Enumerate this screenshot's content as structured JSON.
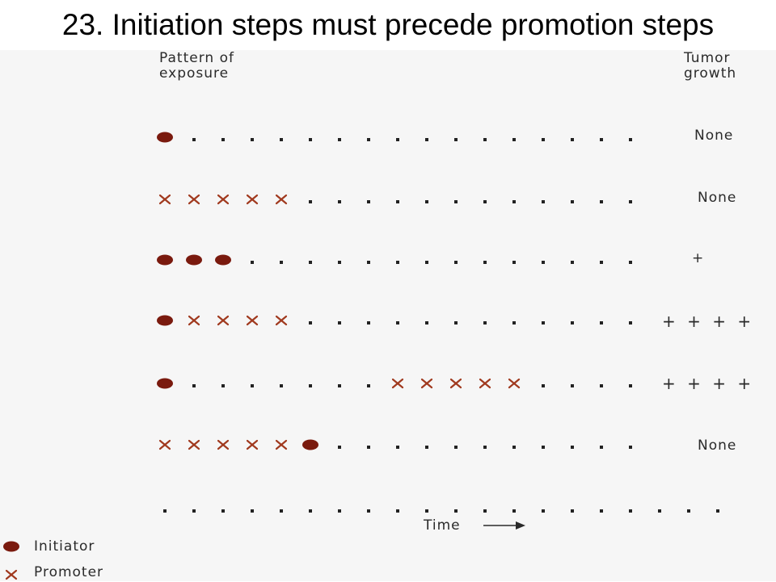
{
  "title": "23. Initiation steps must precede promotion steps",
  "header": {
    "left": [
      "Pattern of",
      "exposure"
    ],
    "right": [
      "Tumor",
      "growth"
    ]
  },
  "colors": {
    "initiator": "#7a1a0e",
    "promoter": "#a0391e",
    "dot": "#222222"
  },
  "rows": [
    {
      "sequence": [
        "I",
        "d",
        "d",
        "d",
        "d",
        "d",
        "d",
        "d",
        "d",
        "d",
        "d",
        "d",
        "d",
        "d",
        "d",
        "d",
        "d"
      ],
      "result": "None"
    },
    {
      "sequence": [
        "P",
        "P",
        "P",
        "P",
        "P",
        "d",
        "d",
        "d",
        "d",
        "d",
        "d",
        "d",
        "d",
        "d",
        "d",
        "d",
        "d"
      ],
      "result": "None"
    },
    {
      "sequence": [
        "I",
        "I",
        "I",
        "d",
        "d",
        "d",
        "d",
        "d",
        "d",
        "d",
        "d",
        "d",
        "d",
        "d",
        "d",
        "d",
        "d"
      ],
      "result": "+"
    },
    {
      "sequence": [
        "I",
        "P",
        "P",
        "P",
        "P",
        "d",
        "d",
        "d",
        "d",
        "d",
        "d",
        "d",
        "d",
        "d",
        "d",
        "d",
        "d"
      ],
      "result": "+ + + +"
    },
    {
      "sequence": [
        "I",
        "d",
        "d",
        "d",
        "d",
        "d",
        "d",
        "d",
        "P",
        "P",
        "P",
        "P",
        "P",
        "d",
        "d",
        "d",
        "d"
      ],
      "result": "+ + + +"
    },
    {
      "sequence": [
        "P",
        "P",
        "P",
        "P",
        "P",
        "I",
        "d",
        "d",
        "d",
        "d",
        "d",
        "d",
        "d",
        "d",
        "d",
        "d",
        "d"
      ],
      "result": "None"
    },
    {
      "sequence": [
        "d",
        "d",
        "d",
        "d",
        "d",
        "d",
        "d",
        "d",
        "d",
        "d",
        "d",
        "d",
        "d",
        "d",
        "d",
        "d",
        "d",
        "d",
        "d",
        "d"
      ],
      "result": ""
    }
  ],
  "time_label": "Time",
  "legend": {
    "initiator": "Initiator",
    "promoter": "Promoter"
  }
}
